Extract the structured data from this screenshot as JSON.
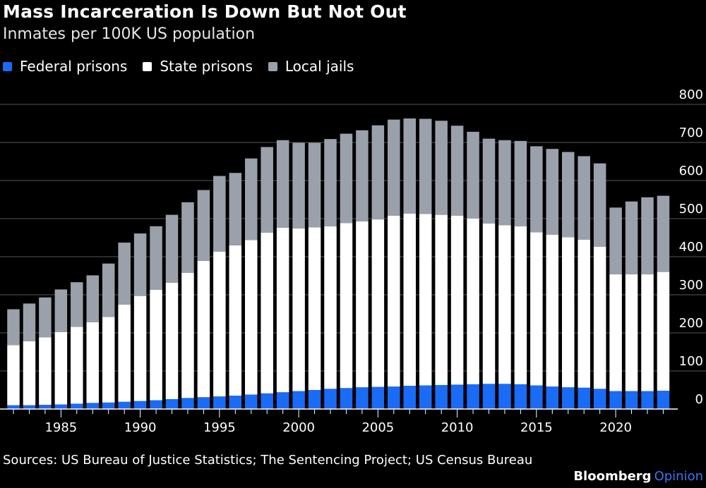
{
  "header": {
    "title": "Mass Incarceration Is Down But Not Out",
    "subtitle": "Inmates per 100K US population"
  },
  "footer": {
    "source": "Sources: US Bureau of Justice Statistics; The Sentencing Project; US Census Bureau",
    "brand_main": "Bloomberg",
    "brand_accent": "Opinion"
  },
  "colors": {
    "federal": "#1a6bf5",
    "state": "#ffffff",
    "local": "#9aa1ab",
    "background": "#000000",
    "grid": "#555555"
  },
  "chart_data": {
    "type": "bar",
    "stacked": true,
    "title": "Mass Incarceration Is Down But Not Out",
    "subtitle": "Inmates per 100K US population",
    "xlabel": "",
    "ylabel": "",
    "ylim": [
      0,
      800
    ],
    "yticks": [
      0,
      100,
      200,
      300,
      400,
      500,
      600,
      700,
      800
    ],
    "xtick_labels": [
      "1985",
      "1990",
      "1995",
      "2000",
      "2005",
      "2010",
      "2015",
      "2020"
    ],
    "x": [
      1982,
      1983,
      1984,
      1985,
      1986,
      1987,
      1988,
      1989,
      1990,
      1991,
      1992,
      1993,
      1994,
      1995,
      1996,
      1997,
      1998,
      1999,
      2000,
      2001,
      2002,
      2003,
      2004,
      2005,
      2006,
      2007,
      2008,
      2009,
      2010,
      2011,
      2012,
      2013,
      2014,
      2015,
      2016,
      2017,
      2018,
      2019,
      2020,
      2021,
      2022,
      2023
    ],
    "series": [
      {
        "name": "Federal prisons",
        "values": [
          10,
          10,
          11,
          12,
          14,
          16,
          17,
          19,
          21,
          23,
          26,
          29,
          31,
          33,
          35,
          38,
          41,
          44,
          47,
          50,
          53,
          55,
          57,
          58,
          59,
          61,
          62,
          63,
          64,
          65,
          66,
          66,
          65,
          62,
          59,
          57,
          56,
          53,
          47,
          47,
          47,
          48
        ]
      },
      {
        "name": "State prisons",
        "values": [
          158,
          168,
          177,
          190,
          202,
          212,
          225,
          255,
          276,
          290,
          306,
          329,
          358,
          380,
          395,
          406,
          422,
          432,
          427,
          427,
          427,
          433,
          436,
          440,
          449,
          452,
          450,
          447,
          444,
          435,
          421,
          417,
          415,
          402,
          399,
          394,
          389,
          373,
          307,
          307,
          307,
          312
        ]
      },
      {
        "name": "Local jails",
        "values": [
          94,
          99,
          105,
          112,
          117,
          123,
          140,
          163,
          164,
          167,
          178,
          185,
          186,
          199,
          190,
          214,
          225,
          230,
          225,
          222,
          229,
          235,
          239,
          247,
          252,
          250,
          250,
          247,
          236,
          228,
          223,
          223,
          224,
          226,
          225,
          224,
          219,
          219,
          175,
          191,
          202,
          200
        ]
      }
    ],
    "legend": [
      "Federal prisons",
      "State prisons",
      "Local jails"
    ],
    "legend_position": "top-left"
  }
}
